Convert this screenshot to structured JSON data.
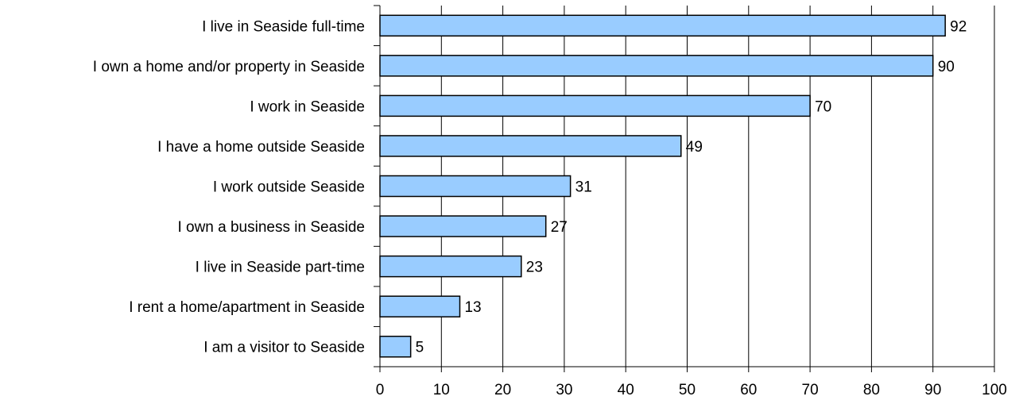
{
  "chart_data": {
    "type": "bar",
    "orientation": "horizontal",
    "categories": [
      "I live in Seaside full-time",
      "I own a home and/or property in Seaside",
      "I work in Seaside",
      "I have a home outside Seaside",
      "I work outside Seaside",
      "I own a business in Seaside",
      "I live in Seaside part-time",
      "I rent a home/apartment in Seaside",
      "I am a visitor to Seaside"
    ],
    "values": [
      92,
      90,
      70,
      49,
      31,
      27,
      23,
      13,
      5
    ],
    "xlim": [
      0,
      100
    ],
    "xticks": [
      0,
      10,
      20,
      30,
      40,
      50,
      60,
      70,
      80,
      90,
      100
    ],
    "title": "",
    "xlabel": "",
    "ylabel": "",
    "grid": "vertical",
    "legend": "none",
    "bar_color": "#99ccff",
    "bar_edge_color": "#000000"
  }
}
